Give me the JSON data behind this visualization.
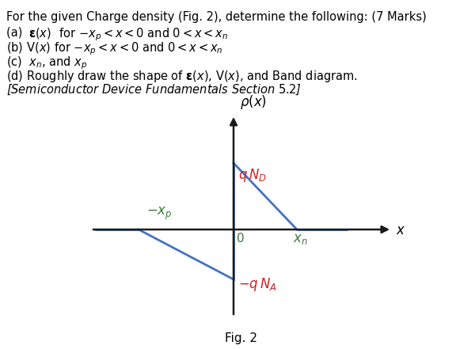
{
  "line_color": "#4472c4",
  "axis_color": "#1a1a1a",
  "green": "#3a7a3a",
  "red": "#cc2222",
  "background": "#ffffff",
  "xp": -1.5,
  "xn": 1.0,
  "qNd": 1.2,
  "qNa": -0.9,
  "text_lines": [
    "For the given Charge density (Fig. 2), determine the following: (7 Marks)",
    "(a)  {eps}(x) for -{xp} < x <0 and 0 < x < {xn}",
    "(b) V(x) for -{xp} < x <0 and 0 < x < {xn}",
    "(c)  {xn}, and {xp}",
    "(d) Roughly draw the shape of {eps}(x), V(x), and Band diagram.",
    "[Semiconductor Device Fundamentals Section 5.2]"
  ]
}
